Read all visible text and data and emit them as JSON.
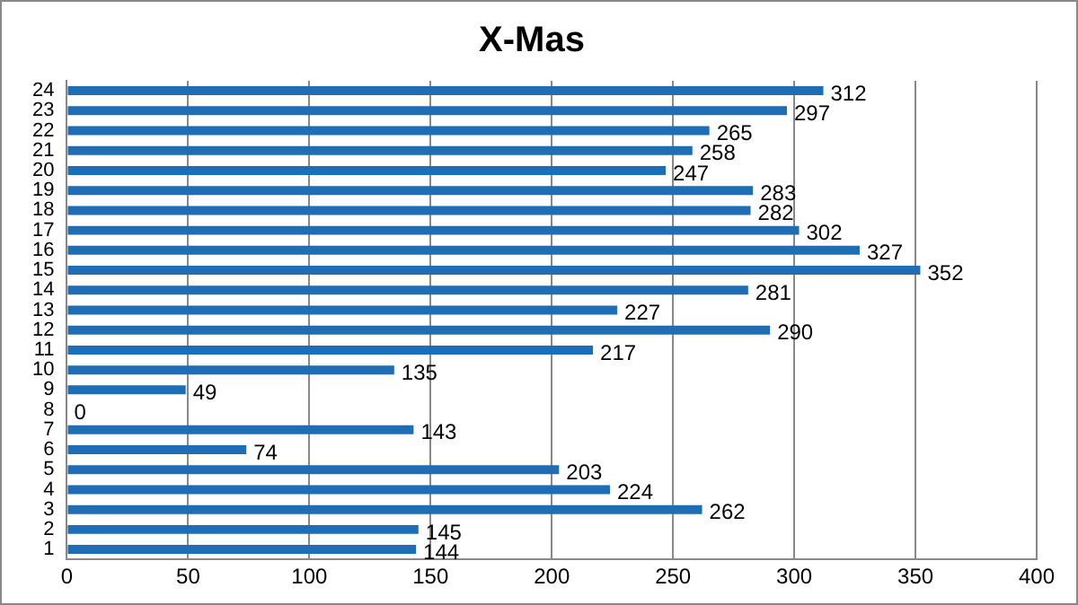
{
  "chart_data": {
    "type": "bar",
    "orientation": "horizontal",
    "title": "X-Mas",
    "categories": [
      "24",
      "23",
      "22",
      "21",
      "20",
      "19",
      "18",
      "17",
      "16",
      "15",
      "14",
      "13",
      "12",
      "11",
      "10",
      "9",
      "8",
      "7",
      "6",
      "5",
      "4",
      "3",
      "2",
      "1"
    ],
    "values": [
      312,
      297,
      265,
      258,
      247,
      283,
      282,
      302,
      327,
      352,
      281,
      227,
      290,
      217,
      135,
      49,
      0,
      143,
      74,
      203,
      224,
      262,
      145,
      144
    ],
    "color": "#1f6db4",
    "xlim": [
      0,
      400
    ],
    "xticks": [
      0,
      50,
      100,
      150,
      200,
      250,
      300,
      350,
      400
    ],
    "grid": "x",
    "data_labels": true,
    "legend": false
  }
}
